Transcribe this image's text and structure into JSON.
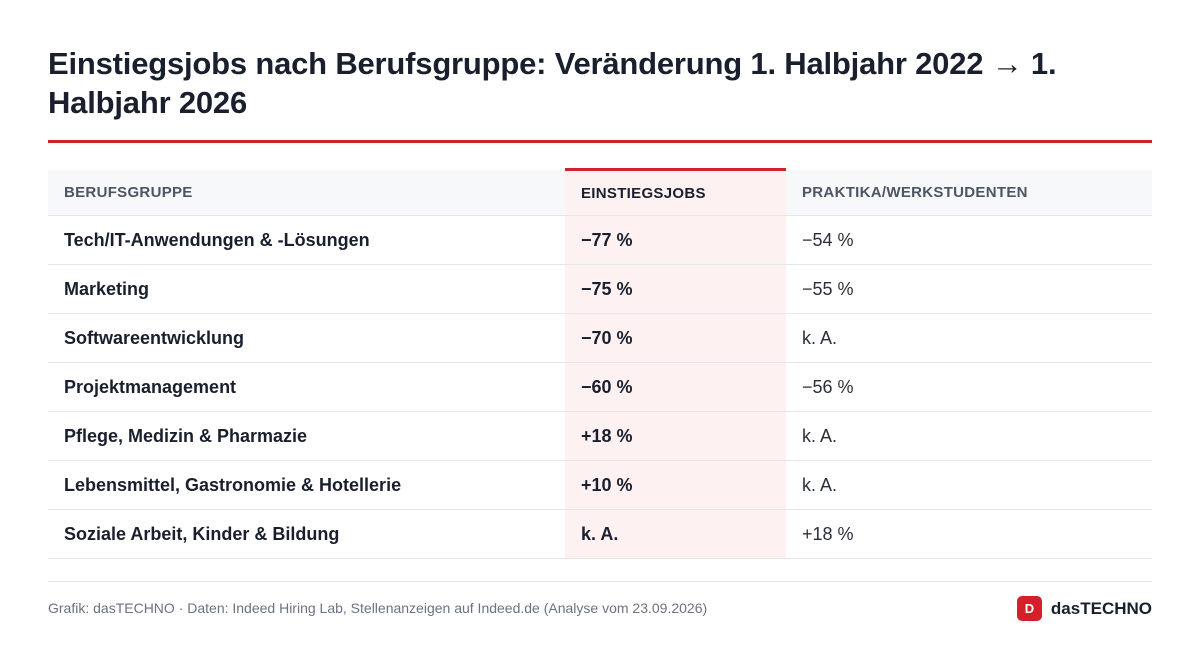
{
  "title": "Einstiegsjobs nach Berufsgruppe: Veränderung 1. Halbjahr 2022 → 1. Halbjahr 2026",
  "colors": {
    "accent": "#d4202a",
    "highlight_bg": "#fdf1f1",
    "header_bg": "#f6f8fa",
    "text": "#1a1f2e",
    "muted": "#6b7280"
  },
  "chart_data": {
    "type": "table",
    "title": "Einstiegsjobs nach Berufsgruppe: Veränderung 1. Halbjahr 2022 → 1. Halbjahr 2026",
    "columns": [
      "BERUFSGRUPPE",
      "EINSTIEGSJOBS",
      "PRAKTIKA/WERKSTUDENTEN"
    ],
    "highlighted_column": "EINSTIEGSJOBS",
    "rows": [
      {
        "group": "Tech/IT-Anwendungen & -Lösungen",
        "entry": "−77 %",
        "intern": "−54 %"
      },
      {
        "group": "Marketing",
        "entry": "−75 %",
        "intern": "−55 %"
      },
      {
        "group": "Softwareentwicklung",
        "entry": "−70 %",
        "intern": "k. A."
      },
      {
        "group": "Projektmanagement",
        "entry": "−60 %",
        "intern": "−56 %"
      },
      {
        "group": "Pflege, Medizin & Pharmazie",
        "entry": "+18 %",
        "intern": "k. A."
      },
      {
        "group": "Lebensmittel, Gastronomie & Hotellerie",
        "entry": "+10 %",
        "intern": "k. A."
      },
      {
        "group": "Soziale Arbeit, Kinder & Bildung",
        "entry": "k. A.",
        "intern": "+18 %"
      }
    ]
  },
  "footer": {
    "source": "Grafik: dasTECHNO · Daten: Indeed Hiring Lab, Stellenanzeigen auf Indeed.de (Analyse vom 23.09.2026)",
    "brand_initial": "D",
    "brand_name": "dasTECHNO"
  }
}
